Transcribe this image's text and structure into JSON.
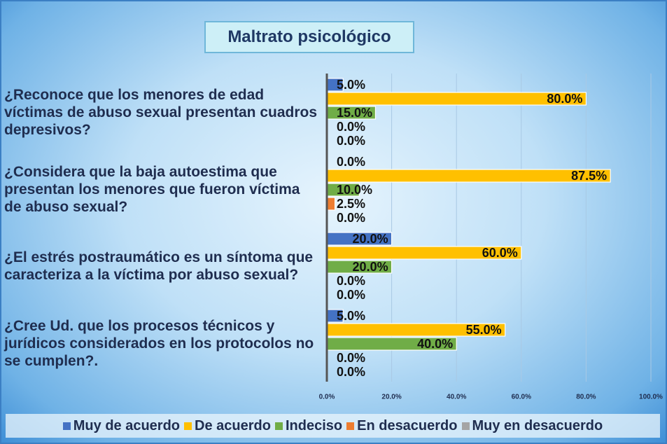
{
  "chart_data": {
    "type": "bar",
    "orientation": "horizontal",
    "title": "Maltrato psicológico",
    "categories": [
      "¿Reconoce que los menores de edad víctimas de abuso sexual presentan cuadros depresivos?",
      "¿Considera que la baja autoestima que presentan los menores que fueron víctima de abuso sexual?",
      "¿El estrés postraumático es un síntoma que caracteriza a la víctima por abuso sexual?",
      "¿Cree Ud. que los procesos técnicos y jurídicos considerados en los protocolos no se cumplen?."
    ],
    "series": [
      {
        "name": "Muy de acuerdo",
        "color": "#4472c4",
        "values": [
          5,
          0,
          20,
          5
        ],
        "value_labels": [
          "5.0%",
          "0.0%",
          "20.0%",
          "5.0%"
        ]
      },
      {
        "name": "De acuerdo",
        "color": "#ffc000",
        "values": [
          80,
          87.5,
          60,
          55
        ],
        "value_labels": [
          "80.0%",
          "87.5%",
          "60.0%",
          "55.0%"
        ]
      },
      {
        "name": "Indeciso",
        "color": "#70ad47",
        "values": [
          15,
          10,
          20,
          40
        ],
        "value_labels": [
          "15.0%",
          "10.0%",
          "20.0%",
          "40.0%"
        ]
      },
      {
        "name": "En desacuerdo",
        "color": "#ed7d31",
        "values": [
          0,
          2.5,
          0,
          0
        ],
        "value_labels": [
          "0.0%",
          "2.5%",
          "0.0%",
          "0.0%"
        ]
      },
      {
        "name": "Muy en desacuerdo",
        "color": "#a5a5a5",
        "values": [
          0,
          0,
          0,
          0
        ],
        "value_labels": [
          "0.0%",
          "0.0%",
          "0.0%",
          "0.0%"
        ]
      }
    ],
    "xlim": [
      0,
      100
    ],
    "xticks": [
      {
        "value": 0,
        "label": "0.0%"
      },
      {
        "value": 20,
        "label": "20.0%"
      },
      {
        "value": 40,
        "label": "40.0%"
      },
      {
        "value": 60,
        "label": "60.0%"
      },
      {
        "value": 80,
        "label": "80.0%"
      },
      {
        "value": 100,
        "label": "100.0%"
      }
    ],
    "grid": true,
    "legend": "bottom"
  }
}
